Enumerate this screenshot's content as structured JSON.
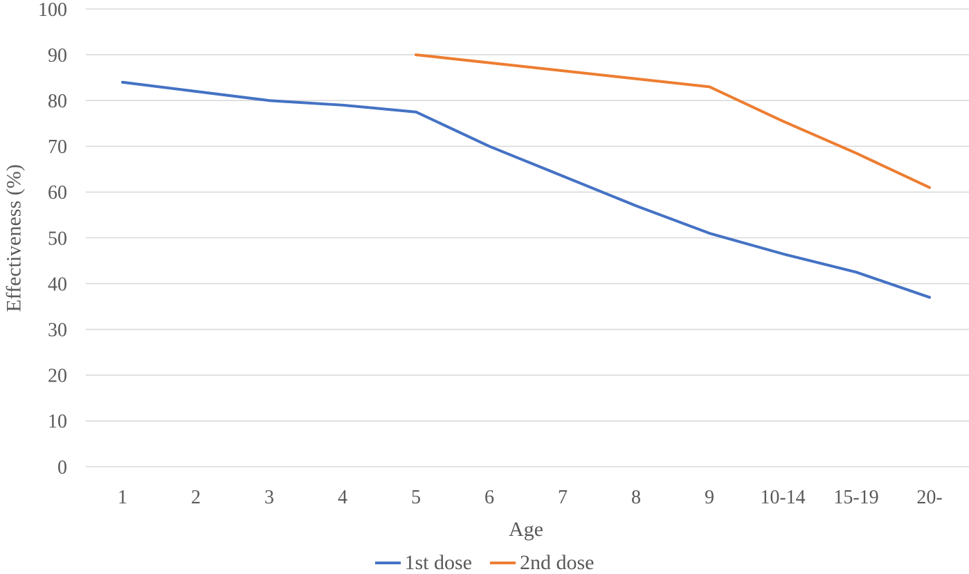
{
  "chart": {
    "background_color": "#ffffff",
    "text_color": "#595959",
    "gridline_color": "#d9d9d9"
  },
  "chart_data": {
    "type": "line",
    "title": "",
    "xlabel": "Age",
    "ylabel": "Effectiveness (%)",
    "categories": [
      "1",
      "2",
      "3",
      "4",
      "5",
      "6",
      "7",
      "8",
      "9",
      "10-14",
      "15-19",
      "20-"
    ],
    "yticks": [
      0,
      10,
      20,
      30,
      40,
      50,
      60,
      70,
      80,
      90,
      100
    ],
    "ylim": [
      0,
      100
    ],
    "grid": "horizontal",
    "legend_position": "bottom",
    "series": [
      {
        "name": "1st dose",
        "color": "#4472C4",
        "values": [
          84,
          82,
          80,
          79,
          77.5,
          70,
          63.5,
          57,
          51,
          46.5,
          42.5,
          37
        ]
      },
      {
        "name": "2nd dose",
        "color": "#ED7D31",
        "values": [
          null,
          null,
          null,
          null,
          90,
          null,
          null,
          null,
          83,
          75.5,
          68.5,
          61
        ]
      }
    ]
  }
}
